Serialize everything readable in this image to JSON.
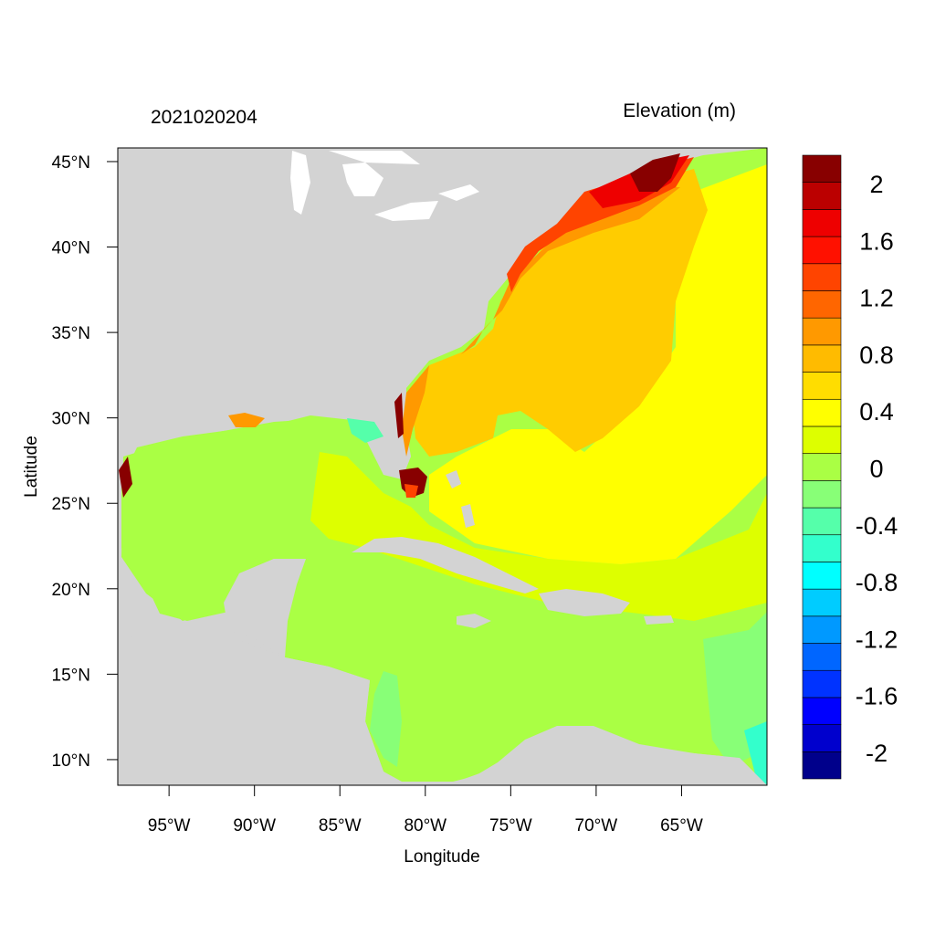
{
  "map": {
    "left_title": "2021020204",
    "right_title": "Elevation (m)",
    "xlabel": "Longitude",
    "ylabel": "Latitude",
    "x_ticks": [
      {
        "value": -95,
        "label": "95°W"
      },
      {
        "value": -90,
        "label": "90°W"
      },
      {
        "value": -85,
        "label": "85°W"
      },
      {
        "value": -80,
        "label": "80°W"
      },
      {
        "value": -75,
        "label": "75°W"
      },
      {
        "value": -70,
        "label": "70°W"
      },
      {
        "value": -65,
        "label": "65°W"
      }
    ],
    "y_ticks": [
      {
        "value": 45,
        "label": "45°N"
      },
      {
        "value": 40,
        "label": "40°N"
      },
      {
        "value": 35,
        "label": "35°N"
      },
      {
        "value": 30,
        "label": "30°N"
      },
      {
        "value": 25,
        "label": "25°N"
      },
      {
        "value": 20,
        "label": "20°N"
      },
      {
        "value": 15,
        "label": "15°N"
      },
      {
        "value": 10,
        "label": "10°N"
      }
    ],
    "lon_range": [
      -98,
      -60
    ],
    "lat_range": [
      8.5,
      45.8
    ],
    "land_color": "#d3d3d3",
    "lake_color": "#ffffff"
  },
  "colorbar": {
    "colors": [
      "#00008b",
      "#0000cd",
      "#0000ff",
      "#0033ff",
      "#0066ff",
      "#0099ff",
      "#00ccff",
      "#00ffff",
      "#33ffcc",
      "#55ffaa",
      "#88ff77",
      "#aaff44",
      "#ddff00",
      "#ffff00",
      "#ffdd00",
      "#ffbb00",
      "#ff9900",
      "#ff6600",
      "#ff4400",
      "#ff1100",
      "#ee0000",
      "#bb0000",
      "#880000"
    ],
    "labels": [
      "2",
      "1.6",
      "1.2",
      "0.8",
      "0.4",
      "0",
      "-0.4",
      "-0.8",
      "-1.2",
      "-1.6",
      "-2"
    ]
  }
}
